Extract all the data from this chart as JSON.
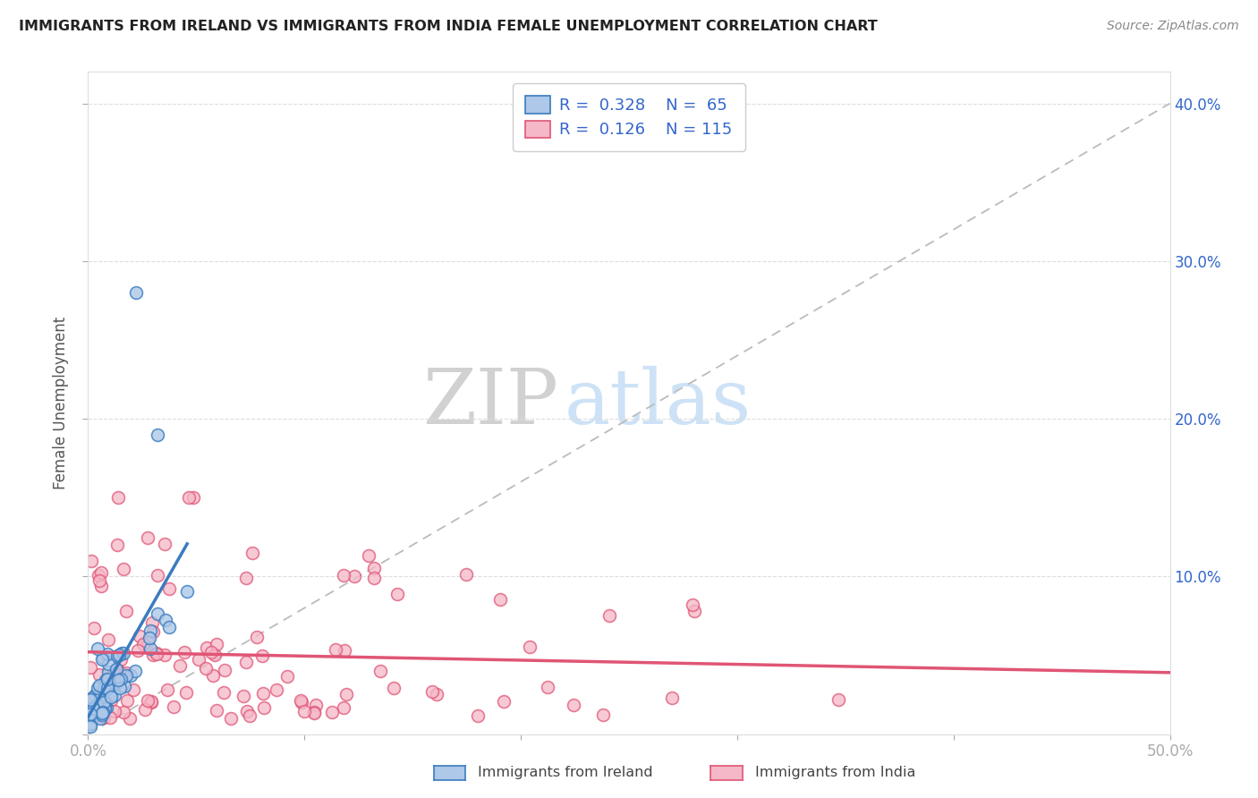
{
  "title": "IMMIGRANTS FROM IRELAND VS IMMIGRANTS FROM INDIA FEMALE UNEMPLOYMENT CORRELATION CHART",
  "source": "Source: ZipAtlas.com",
  "ylabel": "Female Unemployment",
  "xlim": [
    0,
    0.5
  ],
  "ylim": [
    0,
    0.42
  ],
  "ireland_R": 0.328,
  "ireland_N": 65,
  "india_R": 0.126,
  "india_N": 115,
  "ireland_color": "#adc8e8",
  "india_color": "#f5b8c8",
  "ireland_line_color": "#3a7bbf",
  "india_line_color": "#e05575",
  "ref_line_color": "#bbbbbb",
  "background_color": "#ffffff",
  "title_color": "#222222",
  "legend_R_N_color": "#3366cc",
  "axis_label_color": "#555555",
  "right_tick_color": "#3366cc",
  "watermark_zip_color": "#cccccc",
  "watermark_atlas_color": "#c8dff5"
}
